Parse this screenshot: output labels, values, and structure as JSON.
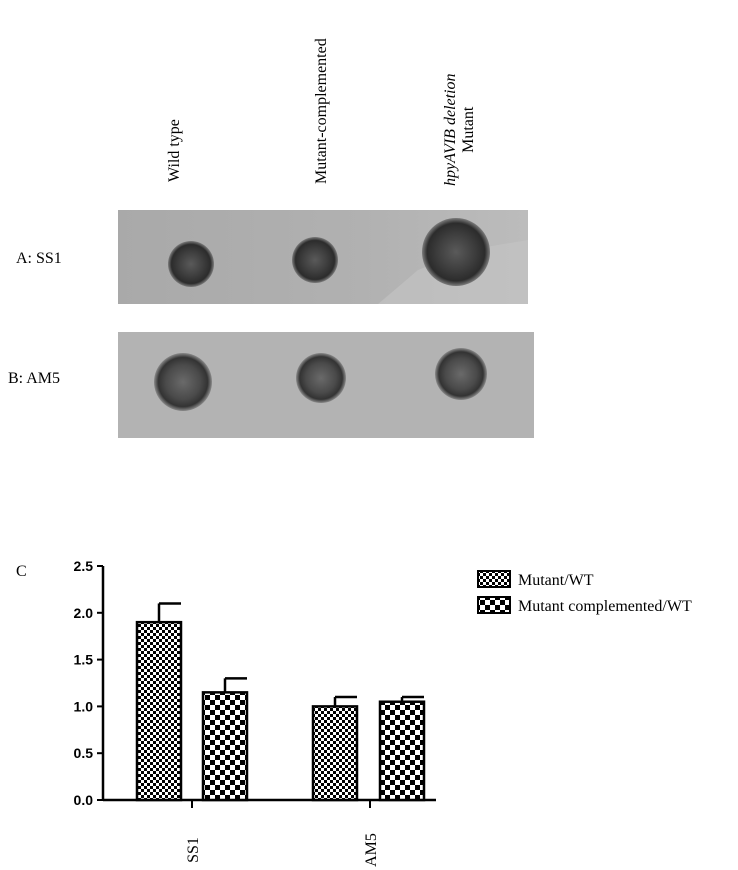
{
  "blot": {
    "columns": [
      {
        "lines": [
          "Wild type"
        ]
      },
      {
        "lines": [
          "Mutant-complemented"
        ]
      },
      {
        "lines": [
          "hpyAVIB deletion",
          "Mutant"
        ]
      }
    ],
    "rows": [
      {
        "label": "A: SS1"
      },
      {
        "label": "B: AM5"
      }
    ]
  },
  "chart_panel_label": "C",
  "chart_data": {
    "type": "bar",
    "categories": [
      "SS1",
      "AM5"
    ],
    "series": [
      {
        "name": "Mutant/WT",
        "values": [
          1.9,
          1.0
        ],
        "errors": [
          0.2,
          0.1
        ],
        "pattern": "fine-checker"
      },
      {
        "name": "Mutant complemented/WT",
        "values": [
          1.15,
          1.05
        ],
        "errors": [
          0.15,
          0.05
        ],
        "pattern": "coarse-checker"
      }
    ],
    "ylim": [
      0,
      2.5
    ],
    "yticks": [
      "0.0",
      "0.5",
      "1.0",
      "1.5",
      "2.0",
      "2.5"
    ],
    "xlabel": "",
    "ylabel": "",
    "legend_position": "top-right",
    "grid": false
  }
}
